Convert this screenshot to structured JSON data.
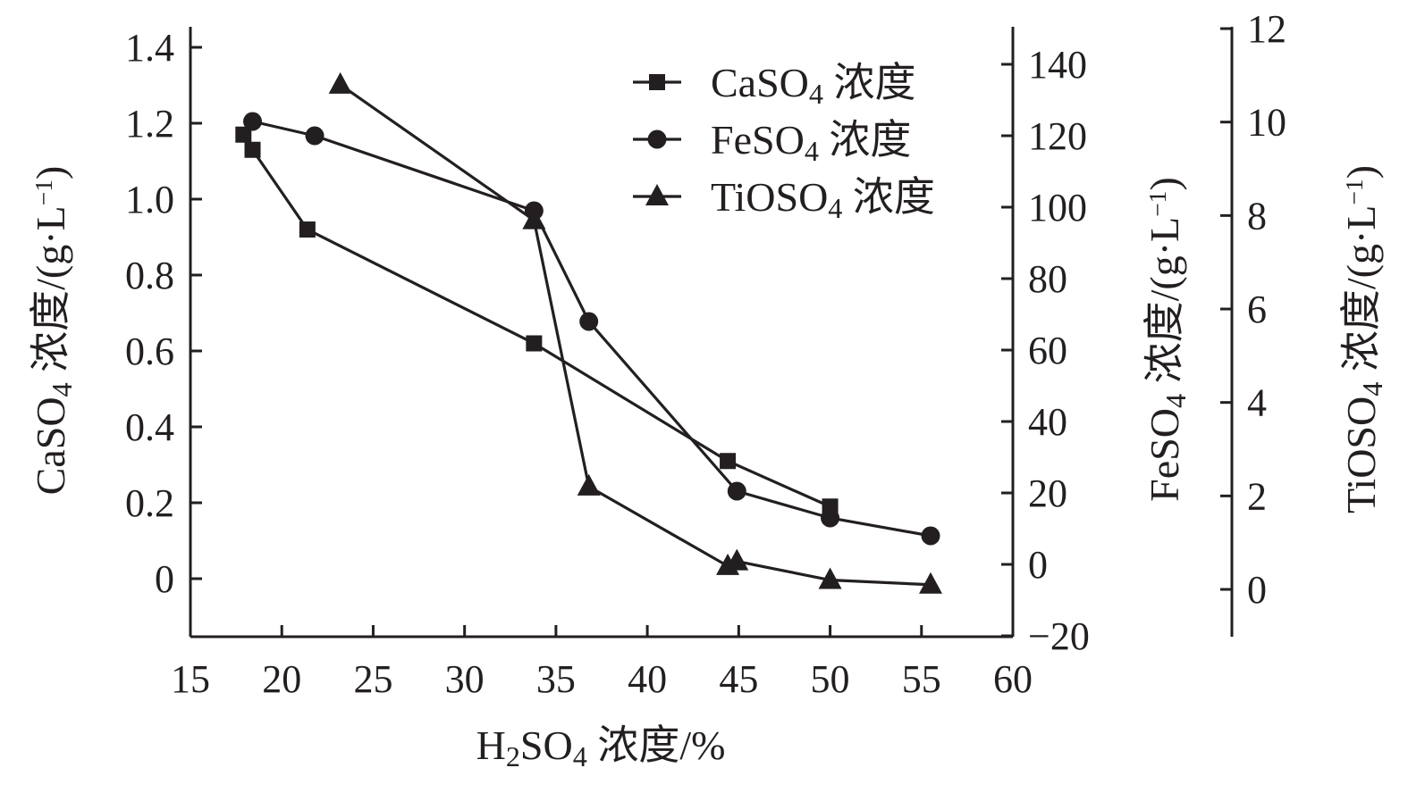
{
  "chart_data": {
    "type": "line",
    "xlabel": {
      "parts": [
        [
          "H",
          ""
        ],
        [
          "2",
          "sub"
        ],
        [
          "SO",
          ""
        ],
        [
          "4",
          "sub"
        ],
        [
          " 浓度/%",
          ""
        ]
      ]
    },
    "xlim": [
      15,
      60
    ],
    "xticks": [
      15,
      20,
      25,
      30,
      35,
      40,
      45,
      50,
      55,
      60
    ],
    "axes": [
      {
        "id": "left",
        "label": {
          "parts": [
            [
              "CaSO",
              ""
            ],
            [
              "4",
              "sub"
            ],
            [
              " 浓度/(g·L",
              ""
            ],
            [
              "−1",
              "sup"
            ],
            [
              ")",
              ""
            ]
          ]
        },
        "ticks": [
          0,
          0.2,
          0.4,
          0.6,
          0.8,
          1.0,
          1.2,
          1.4
        ],
        "tick_labels": [
          "0",
          "0.2",
          "0.4",
          "0.6",
          "0.8",
          "1.0",
          "1.2",
          "1.4"
        ]
      },
      {
        "id": "middle",
        "label": {
          "parts": [
            [
              "FeSO",
              ""
            ],
            [
              "4",
              "sub"
            ],
            [
              " 浓度/(g·L",
              ""
            ],
            [
              "−1",
              "sup"
            ],
            [
              ")",
              ""
            ]
          ]
        },
        "ticks": [
          -20,
          0,
          20,
          40,
          60,
          80,
          100,
          120,
          140
        ],
        "tick_labels": [
          "−20",
          "0",
          "20",
          "40",
          "60",
          "80",
          "100",
          "120",
          "140"
        ]
      },
      {
        "id": "right",
        "label": {
          "parts": [
            [
              "TiOSO",
              ""
            ],
            [
              "4",
              "sub"
            ],
            [
              " 浓度/(g·L",
              ""
            ],
            [
              "−1",
              "sup"
            ],
            [
              ")",
              ""
            ]
          ]
        },
        "ticks": [
          0,
          2,
          4,
          6,
          8,
          10,
          12
        ],
        "tick_labels": [
          "0",
          "2",
          "4",
          "6",
          "8",
          "10",
          "12"
        ]
      }
    ],
    "legend_position": "top-right",
    "grid": false,
    "series": [
      {
        "name": {
          "parts": [
            [
              "CaSO",
              ""
            ],
            [
              "4",
              "sub"
            ],
            [
              " 浓度",
              ""
            ]
          ]
        },
        "axis": "left",
        "marker": "square",
        "x": [
          17.9,
          18.4,
          21.4,
          33.8,
          44.4,
          50.0
        ],
        "y": [
          1.17,
          1.13,
          0.92,
          0.62,
          0.31,
          0.19
        ]
      },
      {
        "name": {
          "parts": [
            [
              "FeSO",
              ""
            ],
            [
              "4",
              "sub"
            ],
            [
              " 浓度",
              ""
            ]
          ]
        },
        "axis": "middle",
        "marker": "circle",
        "x": [
          18.4,
          21.8,
          33.8,
          36.8,
          44.9,
          50.0,
          55.5
        ],
        "y": [
          124,
          120,
          99,
          68,
          20.5,
          13,
          8
        ]
      },
      {
        "name": {
          "parts": [
            [
              "TiOSO",
              ""
            ],
            [
              "4",
              "sub"
            ],
            [
              " 浓度",
              ""
            ]
          ]
        },
        "axis": "right",
        "marker": "triangle",
        "x": [
          23.2,
          33.8,
          36.8,
          44.4,
          44.9,
          50.0,
          55.5
        ],
        "y": [
          10.8,
          7.9,
          2.2,
          0.5,
          0.6,
          0.2,
          0.1
        ]
      }
    ],
    "color": "#231f20"
  }
}
